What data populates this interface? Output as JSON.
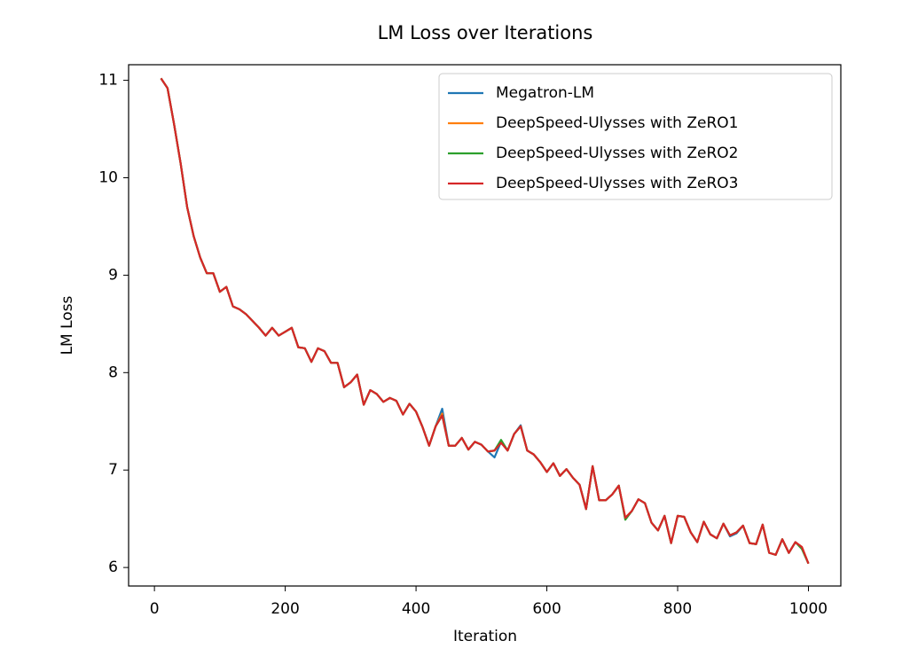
{
  "chart_data": {
    "type": "line",
    "title": "LM Loss over Iterations",
    "x_label": "Iteration",
    "y_label": "LM Loss",
    "x": [
      10,
      20,
      30,
      40,
      50,
      60,
      70,
      80,
      90,
      100,
      110,
      120,
      130,
      140,
      150,
      160,
      170,
      180,
      190,
      200,
      210,
      220,
      230,
      240,
      250,
      260,
      270,
      280,
      290,
      300,
      310,
      320,
      330,
      340,
      350,
      360,
      370,
      380,
      390,
      400,
      410,
      420,
      430,
      440,
      450,
      460,
      470,
      480,
      490,
      500,
      510,
      520,
      530,
      540,
      550,
      560,
      570,
      580,
      590,
      600,
      610,
      620,
      630,
      640,
      650,
      660,
      670,
      680,
      690,
      700,
      710,
      720,
      730,
      740,
      750,
      760,
      770,
      780,
      790,
      800,
      810,
      820,
      830,
      840,
      850,
      860,
      870,
      880,
      890,
      900,
      910,
      920,
      930,
      940,
      950,
      960,
      970,
      980,
      990,
      1000
    ],
    "series": [
      {
        "name": "Megatron-LM",
        "color": "#1f77b4",
        "values": [
          11.02,
          10.92,
          10.55,
          10.15,
          9.7,
          9.4,
          9.18,
          9.02,
          9.02,
          8.83,
          8.88,
          8.68,
          8.65,
          8.6,
          8.53,
          8.46,
          8.38,
          8.46,
          8.38,
          8.42,
          8.46,
          8.26,
          8.25,
          8.11,
          8.25,
          8.22,
          8.1,
          8.1,
          7.85,
          7.9,
          7.98,
          7.67,
          7.82,
          7.78,
          7.7,
          7.74,
          7.71,
          7.57,
          7.68,
          7.6,
          7.44,
          7.25,
          7.45,
          7.63,
          7.25,
          7.25,
          7.33,
          7.21,
          7.29,
          7.26,
          7.19,
          7.13,
          7.29,
          7.2,
          7.37,
          7.46,
          7.2,
          7.16,
          7.08,
          6.98,
          7.07,
          6.94,
          7.01,
          6.92,
          6.85,
          6.6,
          7.04,
          6.69,
          6.69,
          6.75,
          6.84,
          6.5,
          6.58,
          6.7,
          6.66,
          6.46,
          6.38,
          6.53,
          6.25,
          6.53,
          6.52,
          6.36,
          6.26,
          6.47,
          6.34,
          6.3,
          6.45,
          6.32,
          6.35,
          6.43,
          6.25,
          6.24,
          6.44,
          6.15,
          6.13,
          6.29,
          6.15,
          6.26,
          6.2,
          6.04
        ]
      },
      {
        "name": "DeepSpeed-Ulysses with ZeRO1",
        "color": "#ff7f0e",
        "values": [
          11.02,
          10.92,
          10.55,
          10.15,
          9.7,
          9.4,
          9.18,
          9.02,
          9.02,
          8.83,
          8.88,
          8.68,
          8.65,
          8.6,
          8.53,
          8.46,
          8.38,
          8.46,
          8.38,
          8.42,
          8.46,
          8.26,
          8.25,
          8.11,
          8.25,
          8.22,
          8.1,
          8.1,
          7.85,
          7.9,
          7.98,
          7.67,
          7.82,
          7.78,
          7.7,
          7.74,
          7.71,
          7.57,
          7.68,
          7.6,
          7.44,
          7.25,
          7.45,
          7.58,
          7.25,
          7.25,
          7.33,
          7.21,
          7.29,
          7.26,
          7.19,
          7.2,
          7.29,
          7.2,
          7.37,
          7.45,
          7.2,
          7.16,
          7.08,
          6.98,
          7.07,
          6.94,
          7.01,
          6.92,
          6.85,
          6.6,
          7.04,
          6.69,
          6.69,
          6.75,
          6.84,
          6.51,
          6.58,
          6.7,
          6.66,
          6.46,
          6.38,
          6.53,
          6.25,
          6.53,
          6.52,
          6.36,
          6.26,
          6.47,
          6.34,
          6.3,
          6.45,
          6.33,
          6.36,
          6.43,
          6.25,
          6.24,
          6.44,
          6.15,
          6.13,
          6.29,
          6.15,
          6.26,
          6.21,
          6.04
        ]
      },
      {
        "name": "DeepSpeed-Ulysses with ZeRO2",
        "color": "#2ca02c",
        "values": [
          11.02,
          10.92,
          10.55,
          10.15,
          9.7,
          9.4,
          9.18,
          9.02,
          9.02,
          8.83,
          8.88,
          8.68,
          8.65,
          8.6,
          8.53,
          8.46,
          8.38,
          8.46,
          8.38,
          8.42,
          8.46,
          8.26,
          8.25,
          8.11,
          8.25,
          8.22,
          8.1,
          8.1,
          7.85,
          7.9,
          7.98,
          7.67,
          7.82,
          7.78,
          7.7,
          7.74,
          7.71,
          7.57,
          7.68,
          7.6,
          7.44,
          7.25,
          7.45,
          7.56,
          7.25,
          7.25,
          7.33,
          7.21,
          7.29,
          7.26,
          7.19,
          7.2,
          7.31,
          7.2,
          7.37,
          7.45,
          7.2,
          7.16,
          7.08,
          6.98,
          7.07,
          6.94,
          7.01,
          6.92,
          6.85,
          6.6,
          7.04,
          6.69,
          6.69,
          6.75,
          6.84,
          6.49,
          6.58,
          6.7,
          6.66,
          6.46,
          6.38,
          6.53,
          6.25,
          6.53,
          6.52,
          6.36,
          6.26,
          6.47,
          6.34,
          6.3,
          6.45,
          6.33,
          6.36,
          6.43,
          6.25,
          6.24,
          6.44,
          6.15,
          6.13,
          6.29,
          6.15,
          6.26,
          6.19,
          6.04
        ]
      },
      {
        "name": "DeepSpeed-Ulysses with ZeRO3",
        "color": "#d62728",
        "values": [
          11.02,
          10.92,
          10.55,
          10.15,
          9.7,
          9.4,
          9.18,
          9.02,
          9.02,
          8.83,
          8.88,
          8.68,
          8.65,
          8.6,
          8.53,
          8.46,
          8.38,
          8.46,
          8.38,
          8.42,
          8.46,
          8.26,
          8.25,
          8.11,
          8.25,
          8.22,
          8.1,
          8.1,
          7.85,
          7.9,
          7.98,
          7.67,
          7.82,
          7.78,
          7.7,
          7.74,
          7.71,
          7.57,
          7.68,
          7.6,
          7.44,
          7.25,
          7.45,
          7.56,
          7.25,
          7.25,
          7.33,
          7.21,
          7.29,
          7.26,
          7.19,
          7.2,
          7.28,
          7.2,
          7.37,
          7.45,
          7.2,
          7.16,
          7.08,
          6.98,
          7.07,
          6.94,
          7.01,
          6.92,
          6.85,
          6.6,
          7.04,
          6.69,
          6.69,
          6.75,
          6.84,
          6.51,
          6.58,
          6.7,
          6.66,
          6.46,
          6.38,
          6.53,
          6.25,
          6.53,
          6.52,
          6.36,
          6.26,
          6.47,
          6.34,
          6.3,
          6.45,
          6.33,
          6.36,
          6.43,
          6.25,
          6.24,
          6.44,
          6.15,
          6.13,
          6.29,
          6.15,
          6.26,
          6.21,
          6.04
        ]
      }
    ],
    "xlim": [
      -39.5,
      1049.5
    ],
    "ylim": [
      5.81,
      11.16
    ],
    "xticks": [
      0,
      200,
      400,
      600,
      800,
      1000
    ],
    "yticks": [
      6,
      7,
      8,
      9,
      10,
      11
    ],
    "grid": false,
    "legend": "upper right"
  }
}
